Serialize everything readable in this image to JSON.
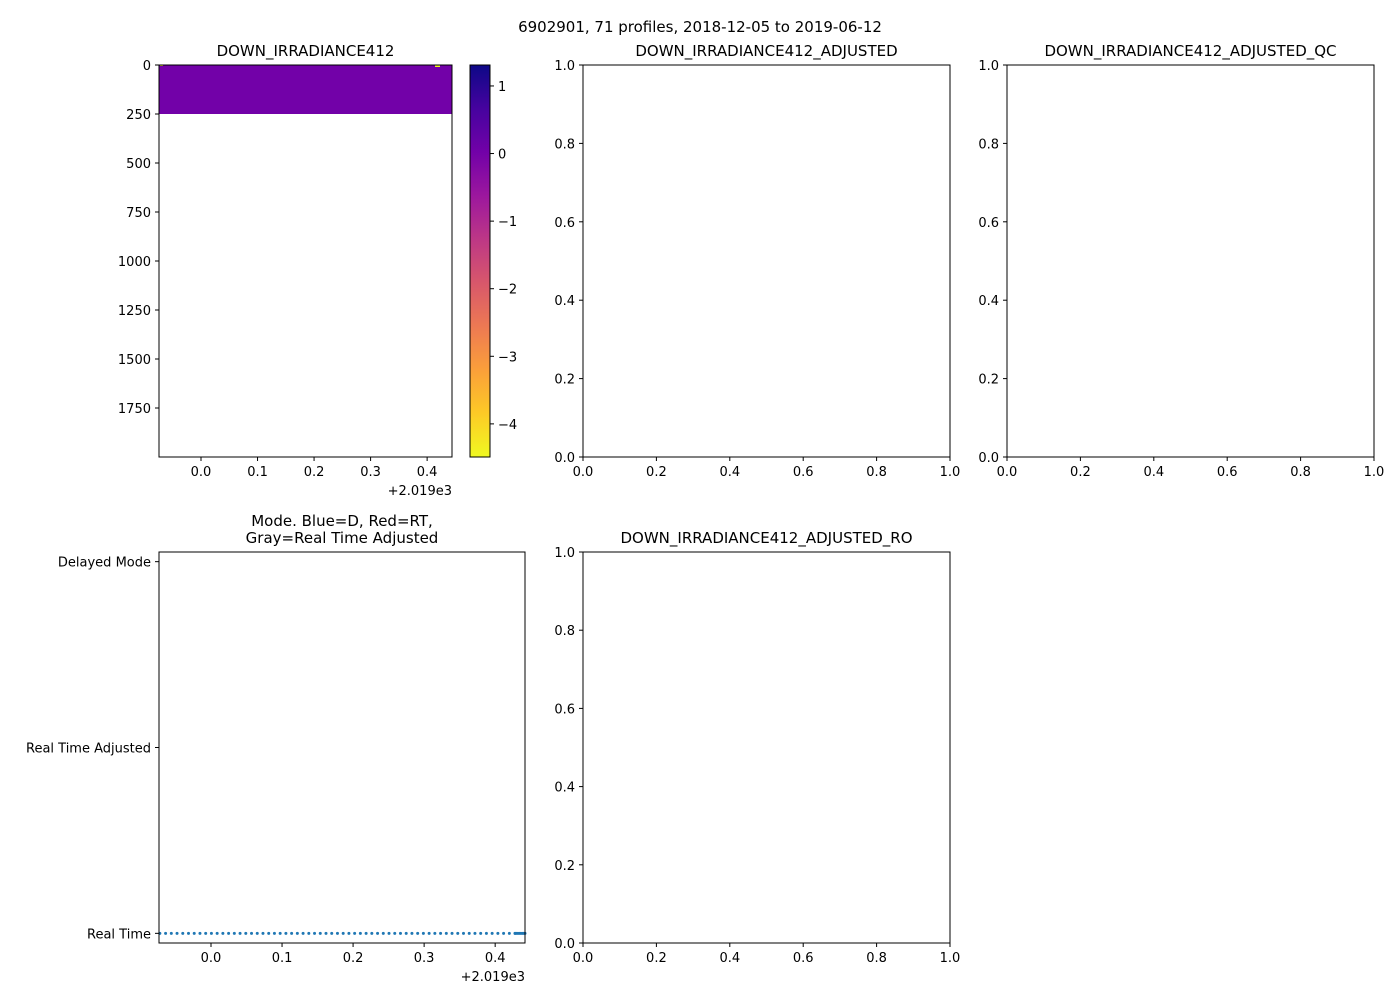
{
  "figure_title": "6902901, 71 profiles, 2018-12-05 to 2019-06-12",
  "chart_data": [
    {
      "id": "p1",
      "type": "heatmap",
      "title": "DOWN_IRRADIANCE412",
      "xlim": [
        -0.0743,
        0.444
      ],
      "ylim": [
        2000,
        0
      ],
      "inverted_y": true,
      "xticks": [
        0.0,
        0.1,
        0.2,
        0.3,
        0.4
      ],
      "xtick_labels": [
        "0.0",
        "0.1",
        "0.2",
        "0.3",
        "0.4"
      ],
      "x_offset_label": "+2.019e3",
      "yticks": [
        0,
        250,
        500,
        750,
        1000,
        1250,
        1500,
        1750
      ],
      "ytick_labels": [
        "0",
        "250",
        "500",
        "750",
        "1000",
        "1250",
        "1500",
        "1750"
      ],
      "data_region": {
        "x": [
          -0.0743,
          0.444
        ],
        "depth": [
          0,
          250
        ],
        "value": 0.0
      },
      "colorbar": {
        "colormap": "plasma_r",
        "range": [
          -4.49,
          1.31
        ],
        "ticks": [
          1,
          0,
          -1,
          -2,
          -3,
          -4
        ],
        "tick_labels": [
          "1",
          "0",
          "−1",
          "−2",
          "−3",
          "−4"
        ]
      }
    },
    {
      "id": "p2",
      "type": "line",
      "title": "DOWN_IRRADIANCE412_ADJUSTED",
      "xlim": [
        0,
        1
      ],
      "ylim": [
        0,
        1
      ],
      "xticks": [
        0,
        0.2,
        0.4,
        0.6,
        0.8,
        1
      ],
      "xtick_labels": [
        "0.0",
        "0.2",
        "0.4",
        "0.6",
        "0.8",
        "1.0"
      ],
      "yticks": [
        0,
        0.2,
        0.4,
        0.6,
        0.8,
        1
      ],
      "ytick_labels": [
        "0.0",
        "0.2",
        "0.4",
        "0.6",
        "0.8",
        "1.0"
      ],
      "series": []
    },
    {
      "id": "p3",
      "type": "line",
      "title": "DOWN_IRRADIANCE412_ADJUSTED_QC",
      "xlim": [
        0,
        1
      ],
      "ylim": [
        0,
        1
      ],
      "xticks": [
        0,
        0.2,
        0.4,
        0.6,
        0.8,
        1
      ],
      "xtick_labels": [
        "0.0",
        "0.2",
        "0.4",
        "0.6",
        "0.8",
        "1.0"
      ],
      "yticks": [
        0,
        0.2,
        0.4,
        0.6,
        0.8,
        1
      ],
      "ytick_labels": [
        "0.0",
        "0.2",
        "0.4",
        "0.6",
        "0.8",
        "1.0"
      ],
      "series": []
    },
    {
      "id": "p4",
      "type": "scatter",
      "title": "Mode. Blue=D, Red=RT,",
      "title2": "Gray=Real Time Adjusted",
      "xlim": [
        -0.0732,
        0.442
      ],
      "ylim": [
        -0.052,
        2.052
      ],
      "xticks": [
        0.0,
        0.1,
        0.2,
        0.3,
        0.4
      ],
      "xtick_labels": [
        "0.0",
        "0.1",
        "0.2",
        "0.3",
        "0.4"
      ],
      "x_offset_label": "+2.019e3",
      "yticks": [
        2,
        1,
        0
      ],
      "ytick_labels": [
        "Delayed Mode",
        "Real Time Adjusted",
        "Real Time"
      ],
      "series": [
        {
          "name": "Real Time",
          "color": "#1f77b4",
          "y": 0,
          "x_start": -0.072,
          "x_dense_start": 0.428,
          "x_end": 0.442,
          "count": 71
        }
      ]
    },
    {
      "id": "p5",
      "type": "line",
      "title": "DOWN_IRRADIANCE412_ADJUSTED_RO",
      "xlim": [
        0,
        1
      ],
      "ylim": [
        0,
        1
      ],
      "xticks": [
        0,
        0.2,
        0.4,
        0.6,
        0.8,
        1
      ],
      "xtick_labels": [
        "0.0",
        "0.2",
        "0.4",
        "0.6",
        "0.8",
        "1.0"
      ],
      "yticks": [
        0,
        0.2,
        0.4,
        0.6,
        0.8,
        1
      ],
      "ytick_labels": [
        "0.0",
        "0.2",
        "0.4",
        "0.6",
        "0.8",
        "1.0"
      ],
      "series": []
    }
  ]
}
